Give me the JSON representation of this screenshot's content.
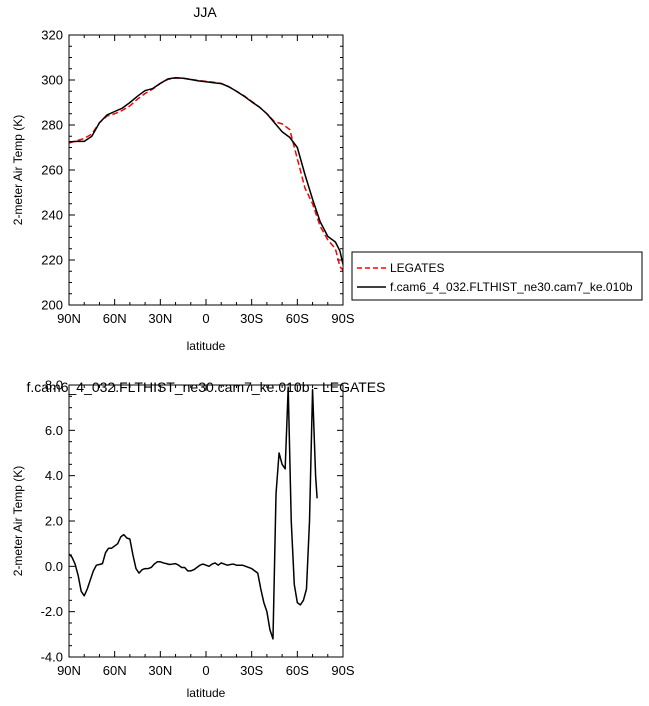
{
  "chart_data": [
    {
      "type": "line",
      "title": "JJA",
      "xlabel": "latitude",
      "ylabel": "2-meter Air Temp (K)",
      "xlim": [
        90,
        -90
      ],
      "ylim": [
        200,
        320
      ],
      "x_ticks": [
        90,
        60,
        30,
        0,
        -30,
        -60,
        -90
      ],
      "x_tick_labels": [
        "90N",
        "60N",
        "30N",
        "0",
        "30S",
        "60S",
        "90S"
      ],
      "y_ticks": [
        200,
        220,
        240,
        260,
        280,
        300,
        320
      ],
      "y_tick_labels": [
        "200",
        "220",
        "240",
        "260",
        "280",
        "300",
        "320"
      ],
      "legend_position": "outside-right",
      "series": [
        {
          "name": "LEGATES",
          "color": "#ff0000",
          "dash": true,
          "points": [
            [
              90,
              272
            ],
            [
              85,
              273
            ],
            [
              80,
              274
            ],
            [
              75,
              276
            ],
            [
              70,
              281
            ],
            [
              65,
              284
            ],
            [
              60,
              285
            ],
            [
              55,
              286.5
            ],
            [
              50,
              288.5
            ],
            [
              45,
              291.5
            ],
            [
              40,
              294
            ],
            [
              35,
              296
            ],
            [
              30,
              298.5
            ],
            [
              25,
              300.3
            ],
            [
              20,
              300.9
            ],
            [
              15,
              300.8
            ],
            [
              10,
              300.3
            ],
            [
              5,
              299.8
            ],
            [
              0,
              299.4
            ],
            [
              -5,
              299
            ],
            [
              -10,
              298.5
            ],
            [
              -15,
              297
            ],
            [
              -20,
              295
            ],
            [
              -25,
              293
            ],
            [
              -30,
              290.5
            ],
            [
              -35,
              288
            ],
            [
              -40,
              285
            ],
            [
              -45,
              281.5
            ],
            [
              -50,
              280.5
            ],
            [
              -55,
              278
            ],
            [
              -60,
              265
            ],
            [
              -65,
              252
            ],
            [
              -70,
              245
            ],
            [
              -75,
              235
            ],
            [
              -80,
              229
            ],
            [
              -85,
              225
            ],
            [
              -88,
              217
            ],
            [
              -90,
              215.5
            ]
          ]
        },
        {
          "name": "f.cam6_4_032.FLTHIST_ne30.cam7_ke.010b",
          "color": "#000000",
          "dash": false,
          "points": [
            [
              90,
              272.5
            ],
            [
              85,
              272.7
            ],
            [
              80,
              272.7
            ],
            [
              75,
              275
            ],
            [
              70,
              281
            ],
            [
              65,
              284.5
            ],
            [
              60,
              286
            ],
            [
              55,
              287.5
            ],
            [
              50,
              290
            ],
            [
              45,
              292.8
            ],
            [
              40,
              295.3
            ],
            [
              35,
              296.2
            ],
            [
              30,
              298.5
            ],
            [
              25,
              300.5
            ],
            [
              20,
              301
            ],
            [
              15,
              300.8
            ],
            [
              10,
              300.2
            ],
            [
              5,
              299.6
            ],
            [
              0,
              299.2
            ],
            [
              -5,
              298.8
            ],
            [
              -10,
              298.4
            ],
            [
              -15,
              297
            ],
            [
              -20,
              295
            ],
            [
              -25,
              292.8
            ],
            [
              -30,
              290.3
            ],
            [
              -35,
              288
            ],
            [
              -40,
              285
            ],
            [
              -45,
              281
            ],
            [
              -50,
              277
            ],
            [
              -55,
              274.5
            ],
            [
              -60,
              270
            ],
            [
              -65,
              258
            ],
            [
              -70,
              247
            ],
            [
              -75,
              237
            ],
            [
              -80,
              230.5
            ],
            [
              -85,
              228
            ],
            [
              -88,
              224
            ],
            [
              -90,
              218
            ]
          ]
        }
      ]
    },
    {
      "type": "line",
      "title": "f.cam6_4_032.FLTHIST_ne30.cam7_ke.010b - LEGATES",
      "xlabel": "latitude",
      "ylabel": "2-meter Air Temp (K)",
      "xlim": [
        90,
        -90
      ],
      "ylim": [
        -4.0,
        8.0
      ],
      "x_ticks": [
        90,
        60,
        30,
        0,
        -30,
        -60,
        -90
      ],
      "x_tick_labels": [
        "90N",
        "60N",
        "30N",
        "0",
        "30S",
        "60S",
        "90S"
      ],
      "y_ticks": [
        -4,
        -2,
        0,
        2,
        4,
        6,
        8
      ],
      "y_tick_labels": [
        "-4.0",
        "-2.0",
        "0.0",
        "2.0",
        "4.0",
        "6.0",
        "8.0"
      ],
      "series": [
        {
          "color": "#000000",
          "dash": false,
          "points": [
            [
              90,
              0.55
            ],
            [
              88,
              0.4
            ],
            [
              86,
              0.1
            ],
            [
              84,
              -0.4
            ],
            [
              82,
              -1.1
            ],
            [
              80,
              -1.3
            ],
            [
              78,
              -1.0
            ],
            [
              76,
              -0.6
            ],
            [
              74,
              -0.2
            ],
            [
              72,
              0.05
            ],
            [
              70,
              0.08
            ],
            [
              68,
              0.12
            ],
            [
              66,
              0.6
            ],
            [
              64,
              0.8
            ],
            [
              62,
              0.8
            ],
            [
              60,
              0.9
            ],
            [
              58,
              1.0
            ],
            [
              56,
              1.3
            ],
            [
              54,
              1.4
            ],
            [
              52,
              1.25
            ],
            [
              50,
              1.2
            ],
            [
              48,
              0.5
            ],
            [
              46,
              -0.1
            ],
            [
              44,
              -0.3
            ],
            [
              42,
              -0.15
            ],
            [
              40,
              -0.1
            ],
            [
              38,
              -0.1
            ],
            [
              36,
              -0.05
            ],
            [
              34,
              0.1
            ],
            [
              32,
              0.2
            ],
            [
              30,
              0.2
            ],
            [
              28,
              0.15
            ],
            [
              26,
              0.12
            ],
            [
              24,
              0.08
            ],
            [
              22,
              0.1
            ],
            [
              20,
              0.12
            ],
            [
              18,
              0.05
            ],
            [
              16,
              -0.05
            ],
            [
              14,
              -0.05
            ],
            [
              12,
              -0.2
            ],
            [
              10,
              -0.2
            ],
            [
              8,
              -0.15
            ],
            [
              6,
              -0.05
            ],
            [
              4,
              0.05
            ],
            [
              2,
              0.1
            ],
            [
              0,
              0.05
            ],
            [
              -2,
              0.0
            ],
            [
              -4,
              0.1
            ],
            [
              -6,
              0.15
            ],
            [
              -8,
              0.05
            ],
            [
              -10,
              0.15
            ],
            [
              -12,
              0.1
            ],
            [
              -14,
              0.05
            ],
            [
              -16,
              0.08
            ],
            [
              -18,
              0.1
            ],
            [
              -20,
              0.05
            ],
            [
              -22,
              0.05
            ],
            [
              -24,
              0.05
            ],
            [
              -26,
              0.0
            ],
            [
              -28,
              -0.05
            ],
            [
              -30,
              -0.1
            ],
            [
              -32,
              -0.2
            ],
            [
              -34,
              -0.3
            ],
            [
              -36,
              -1.0
            ],
            [
              -38,
              -1.6
            ],
            [
              -40,
              -2.0
            ],
            [
              -42,
              -2.8
            ],
            [
              -44,
              -3.2
            ],
            [
              -46,
              3.2
            ],
            [
              -48,
              5.0
            ],
            [
              -50,
              4.5
            ],
            [
              -52,
              4.3
            ],
            [
              -54,
              7.9
            ],
            [
              -56,
              2.0
            ],
            [
              -58,
              -0.8
            ],
            [
              -60,
              -1.6
            ],
            [
              -62,
              -1.7
            ],
            [
              -64,
              -1.5
            ],
            [
              -66,
              -1.0
            ],
            [
              -68,
              2.0
            ],
            [
              -70,
              7.8
            ],
            [
              -72,
              4.0
            ],
            [
              -73,
              3.0
            ]
          ]
        }
      ]
    }
  ]
}
